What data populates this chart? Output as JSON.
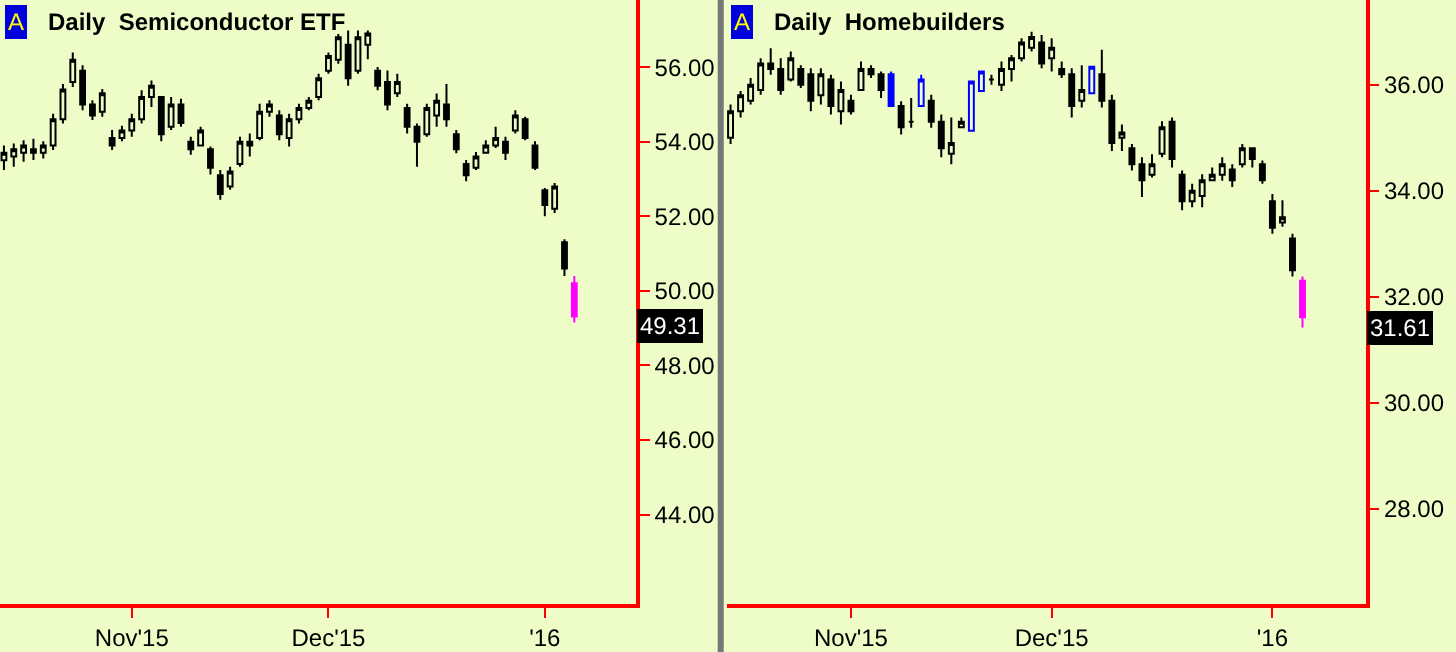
{
  "chart_data": [
    {
      "type": "candlestick",
      "title": "Daily  Semiconductor ETF",
      "categories": [
        null,
        null,
        null,
        null,
        null,
        null,
        null,
        null,
        null,
        null,
        null,
        null,
        null,
        "Nov'15",
        null,
        null,
        null,
        null,
        null,
        null,
        null,
        null,
        null,
        null,
        null,
        null,
        null,
        null,
        null,
        null,
        null,
        null,
        null,
        "Dec'15",
        null,
        null,
        null,
        null,
        null,
        null,
        null,
        null,
        null,
        null,
        null,
        null,
        null,
        null,
        null,
        null,
        null,
        null,
        null,
        null,
        null,
        "'16",
        null,
        null,
        null
      ],
      "ohlc": [
        [
          53.5,
          53.9,
          53.24,
          53.7
        ],
        [
          53.6,
          53.95,
          53.33,
          53.8
        ],
        [
          53.7,
          54.04,
          53.46,
          53.9
        ],
        [
          53.8,
          54.08,
          53.51,
          53.7
        ],
        [
          53.7,
          54.01,
          53.55,
          53.9
        ],
        [
          53.9,
          54.75,
          53.78,
          54.6
        ],
        [
          54.6,
          55.55,
          54.49,
          55.4
        ],
        [
          55.6,
          56.39,
          55.47,
          56.2
        ],
        [
          55.9,
          56.05,
          54.84,
          55.0
        ],
        [
          55.0,
          55.11,
          54.58,
          54.7
        ],
        [
          54.8,
          55.41,
          54.67,
          55.3
        ],
        [
          54.1,
          54.31,
          53.78,
          53.9
        ],
        [
          54.1,
          54.43,
          54.01,
          54.3
        ],
        [
          54.3,
          54.75,
          54.13,
          54.6
        ],
        [
          54.6,
          55.38,
          54.49,
          55.2
        ],
        [
          55.2,
          55.64,
          54.93,
          55.5
        ],
        [
          55.2,
          55.2,
          54.01,
          54.2
        ],
        [
          54.4,
          55.2,
          54.31,
          55.0
        ],
        [
          55.0,
          55.15,
          54.4,
          54.5
        ],
        [
          54.0,
          54.13,
          53.65,
          53.8
        ],
        [
          53.9,
          54.4,
          53.87,
          54.3
        ],
        [
          53.8,
          53.87,
          53.12,
          53.3
        ],
        [
          53.1,
          53.24,
          52.44,
          52.6
        ],
        [
          52.8,
          53.33,
          52.71,
          53.2
        ],
        [
          53.4,
          54.13,
          53.33,
          54.0
        ],
        [
          54.0,
          54.22,
          53.6,
          53.9
        ],
        [
          54.1,
          55.02,
          54.04,
          54.8
        ],
        [
          54.8,
          55.11,
          54.67,
          55.0
        ],
        [
          54.7,
          54.84,
          54.04,
          54.2
        ],
        [
          54.1,
          54.75,
          53.87,
          54.6
        ],
        [
          54.6,
          55.02,
          54.49,
          54.9
        ],
        [
          54.9,
          55.2,
          54.84,
          55.1
        ],
        [
          55.2,
          55.82,
          55.11,
          55.7
        ],
        [
          55.9,
          56.39,
          55.82,
          56.3
        ],
        [
          56.2,
          56.89,
          56.09,
          56.8
        ],
        [
          56.6,
          56.98,
          55.5,
          55.7
        ],
        [
          55.9,
          56.98,
          55.82,
          56.8
        ],
        [
          56.6,
          56.98,
          56.21,
          56.9
        ],
        [
          55.9,
          56.0,
          55.38,
          55.5
        ],
        [
          55.6,
          55.91,
          54.84,
          55.0
        ],
        [
          55.3,
          55.82,
          55.2,
          55.6
        ],
        [
          54.9,
          55.02,
          54.22,
          54.4
        ],
        [
          54.4,
          54.49,
          53.33,
          54.0
        ],
        [
          54.2,
          55.02,
          54.13,
          54.9
        ],
        [
          54.7,
          55.29,
          54.4,
          55.1
        ],
        [
          55.0,
          55.55,
          54.4,
          54.6
        ],
        [
          54.2,
          54.31,
          53.69,
          53.8
        ],
        [
          53.4,
          53.51,
          52.94,
          53.1
        ],
        [
          53.3,
          53.72,
          53.24,
          53.6
        ],
        [
          53.7,
          54.04,
          53.69,
          53.9
        ],
        [
          53.9,
          54.4,
          53.83,
          54.1
        ],
        [
          54.0,
          54.13,
          53.51,
          53.7
        ],
        [
          54.3,
          54.84,
          54.22,
          54.7
        ],
        [
          54.6,
          54.67,
          54.04,
          54.1
        ],
        [
          53.9,
          54.01,
          53.24,
          53.3
        ],
        [
          52.7,
          52.76,
          52.0,
          52.3
        ],
        [
          52.2,
          52.89,
          52.09,
          52.8
        ],
        [
          51.3,
          51.38,
          50.4,
          50.6
        ],
        [
          50.2,
          50.4,
          49.15,
          49.31
        ]
      ],
      "colors": [
        "#000000",
        "#000000",
        "#000000",
        "#000000",
        "#000000",
        "#000000",
        "#000000",
        "#000000",
        "#000000",
        "#000000",
        "#000000",
        "#000000",
        "#000000",
        "#000000",
        "#000000",
        "#000000",
        "#000000",
        "#000000",
        "#000000",
        "#000000",
        "#000000",
        "#000000",
        "#000000",
        "#000000",
        "#000000",
        "#000000",
        "#000000",
        "#000000",
        "#000000",
        "#000000",
        "#000000",
        "#000000",
        "#000000",
        "#000000",
        "#000000",
        "#000000",
        "#000000",
        "#000000",
        "#000000",
        "#000000",
        "#000000",
        "#000000",
        "#000000",
        "#000000",
        "#000000",
        "#000000",
        "#000000",
        "#000000",
        "#000000",
        "#000000",
        "#000000",
        "#000000",
        "#000000",
        "#000000",
        "#000000",
        "#000000",
        "#000000",
        "#000000",
        "#ff00ff"
      ],
      "ylim": [
        41.6,
        57.8
      ],
      "yticks": [
        {
          "value": 44,
          "label": "44.00"
        },
        {
          "value": 46,
          "label": "46.00"
        },
        {
          "value": 48,
          "label": "48.00"
        },
        {
          "value": 50,
          "label": "50.00"
        },
        {
          "value": 52,
          "label": "52.00"
        },
        {
          "value": 54,
          "label": "54.00"
        },
        {
          "value": 56,
          "label": "56.00"
        }
      ],
      "annotations": [
        "A",
        "49.31"
      ]
    },
    {
      "type": "candlestick",
      "title": "Daily  Homebuilders",
      "categories": [
        null,
        null,
        null,
        null,
        null,
        null,
        null,
        null,
        null,
        null,
        null,
        null,
        "Nov'15",
        null,
        null,
        null,
        null,
        null,
        null,
        null,
        null,
        null,
        null,
        null,
        null,
        null,
        null,
        null,
        null,
        null,
        null,
        null,
        "Dec'15",
        null,
        null,
        null,
        null,
        null,
        null,
        null,
        null,
        null,
        null,
        null,
        null,
        null,
        null,
        null,
        null,
        null,
        null,
        null,
        null,
        null,
        "'16",
        null,
        null,
        null
      ],
      "ohlc": [
        [
          35.0,
          35.63,
          34.88,
          35.5
        ],
        [
          35.5,
          35.88,
          35.38,
          35.8
        ],
        [
          35.7,
          36.13,
          35.63,
          36.0
        ],
        [
          35.9,
          36.5,
          35.81,
          36.4
        ],
        [
          36.4,
          36.69,
          36.19,
          36.3
        ],
        [
          36.3,
          36.5,
          35.81,
          35.9
        ],
        [
          36.1,
          36.63,
          36.06,
          36.5
        ],
        [
          36.3,
          36.37,
          35.94,
          36.0
        ],
        [
          36.2,
          36.31,
          35.5,
          35.7
        ],
        [
          35.8,
          36.31,
          35.63,
          36.2
        ],
        [
          36.1,
          36.19,
          35.44,
          35.6
        ],
        [
          35.5,
          36.06,
          35.25,
          35.9
        ],
        [
          35.7,
          35.81,
          35.44,
          35.5
        ],
        [
          35.9,
          36.44,
          35.88,
          36.3
        ],
        [
          36.3,
          36.37,
          36.13,
          36.2
        ],
        [
          36.2,
          36.25,
          35.75,
          35.9
        ],
        [
          36.2,
          36.25,
          35.59,
          35.6
        ],
        [
          35.6,
          35.69,
          35.06,
          35.2
        ],
        [
          35.3,
          35.75,
          35.19,
          35.3
        ],
        [
          35.6,
          36.19,
          35.59,
          36.1
        ],
        [
          35.7,
          35.81,
          35.19,
          35.3
        ],
        [
          35.3,
          35.44,
          34.63,
          34.8
        ],
        [
          34.7,
          35.38,
          34.5,
          34.9
        ],
        [
          35.2,
          35.38,
          35.19,
          35.3
        ],
        [
          35.13,
          36.06,
          35.13,
          36.06
        ],
        [
          35.88,
          36.25,
          35.88,
          36.25
        ],
        [
          36.1,
          36.19,
          36.0,
          36.1
        ],
        [
          36.0,
          36.44,
          35.88,
          36.3
        ],
        [
          36.3,
          36.56,
          36.06,
          36.5
        ],
        [
          36.5,
          36.88,
          36.44,
          36.8
        ],
        [
          36.7,
          37.0,
          36.63,
          36.9
        ],
        [
          36.8,
          36.94,
          36.31,
          36.4
        ],
        [
          36.5,
          36.88,
          36.25,
          36.7
        ],
        [
          36.3,
          36.44,
          36.13,
          36.2
        ],
        [
          36.2,
          36.31,
          35.38,
          35.6
        ],
        [
          35.7,
          36.37,
          35.57,
          35.9
        ],
        [
          35.84,
          36.34,
          35.84,
          36.34
        ],
        [
          36.2,
          36.66,
          35.57,
          35.7
        ],
        [
          35.7,
          35.81,
          34.75,
          34.9
        ],
        [
          35.0,
          35.25,
          34.75,
          35.1
        ],
        [
          34.8,
          34.88,
          34.38,
          34.5
        ],
        [
          34.5,
          34.63,
          33.88,
          34.2
        ],
        [
          34.3,
          34.69,
          34.25,
          34.5
        ],
        [
          34.7,
          35.31,
          34.63,
          35.2
        ],
        [
          35.3,
          35.38,
          34.44,
          34.6
        ],
        [
          34.3,
          34.38,
          33.63,
          33.8
        ],
        [
          33.8,
          34.13,
          33.69,
          34.0
        ],
        [
          33.9,
          34.31,
          33.69,
          34.2
        ],
        [
          34.2,
          34.44,
          34.19,
          34.3
        ],
        [
          34.3,
          34.63,
          34.19,
          34.5
        ],
        [
          34.4,
          34.5,
          34.07,
          34.2
        ],
        [
          34.5,
          34.88,
          34.44,
          34.8
        ],
        [
          34.8,
          34.82,
          34.44,
          34.6
        ],
        [
          34.5,
          34.57,
          34.13,
          34.2
        ],
        [
          33.8,
          33.94,
          33.19,
          33.3
        ],
        [
          33.4,
          33.82,
          33.32,
          33.5
        ],
        [
          33.1,
          33.19,
          32.38,
          32.5
        ],
        [
          32.3,
          32.38,
          31.42,
          31.61
        ]
      ],
      "colors": [
        "#000000",
        "#000000",
        "#000000",
        "#000000",
        "#000000",
        "#000000",
        "#000000",
        "#000000",
        "#000000",
        "#000000",
        "#000000",
        "#000000",
        "#000000",
        "#000000",
        "#000000",
        "#000000",
        "#0000ff",
        "#000000",
        "#000000",
        "#0000ff",
        "#000000",
        "#000000",
        "#000000",
        "#000000",
        "#0000ff",
        "#0000ff",
        "#000000",
        "#000000",
        "#000000",
        "#000000",
        "#000000",
        "#000000",
        "#000000",
        "#000000",
        "#000000",
        "#000000",
        "#0000ff",
        "#000000",
        "#000000",
        "#000000",
        "#000000",
        "#000000",
        "#000000",
        "#000000",
        "#000000",
        "#000000",
        "#000000",
        "#000000",
        "#000000",
        "#000000",
        "#000000",
        "#000000",
        "#000000",
        "#000000",
        "#000000",
        "#000000",
        "#000000",
        "#ff00ff"
      ],
      "ylim": [
        26.2,
        37.6
      ],
      "yticks": [
        {
          "value": 28,
          "label": "28.00"
        },
        {
          "value": 30,
          "label": "30.00"
        },
        {
          "value": 32,
          "label": "32.00"
        },
        {
          "value": 34,
          "label": "34.00"
        },
        {
          "value": 36,
          "label": "36.00"
        }
      ],
      "annotations": [
        "A",
        "31.61"
      ]
    }
  ]
}
